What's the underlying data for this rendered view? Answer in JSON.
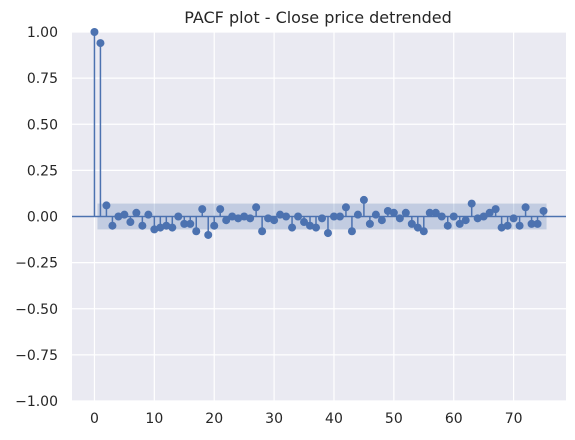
{
  "chart_data": {
    "type": "scatter",
    "subtype": "stem",
    "title": "PACF plot - Close price detrended",
    "xlabel": "",
    "ylabel": "",
    "xlim": [
      -3.75,
      78.75
    ],
    "ylim": [
      -1.0,
      1.0
    ],
    "x_ticks": [
      0,
      10,
      20,
      30,
      40,
      50,
      60,
      70
    ],
    "y_ticks": [
      1.0,
      0.75,
      0.5,
      0.25,
      0.0,
      -0.25,
      -0.5,
      -0.75,
      -1.0
    ],
    "x_tick_labels": [
      "0",
      "10",
      "20",
      "30",
      "40",
      "50",
      "60",
      "70"
    ],
    "y_tick_labels": [
      "1.00",
      "0.75",
      "0.50",
      "0.25",
      "0.00",
      "−0.25",
      "−0.50",
      "−0.75",
      "−1.00"
    ],
    "grid": true,
    "background": "#eaeaf2",
    "marker_color": "#4c72b0",
    "confint_color": "#4c72b0",
    "confidence_interval": {
      "x_start": 1,
      "x_end": 75,
      "lower": -0.07,
      "upper": 0.07
    },
    "lags": [
      0,
      1,
      2,
      3,
      4,
      5,
      6,
      7,
      8,
      9,
      10,
      11,
      12,
      13,
      14,
      15,
      16,
      17,
      18,
      19,
      20,
      21,
      22,
      23,
      24,
      25,
      26,
      27,
      28,
      29,
      30,
      31,
      32,
      33,
      34,
      35,
      36,
      37,
      38,
      39,
      40,
      41,
      42,
      43,
      44,
      45,
      46,
      47,
      48,
      49,
      50,
      51,
      52,
      53,
      54,
      55,
      56,
      57,
      58,
      59,
      60,
      61,
      62,
      63,
      64,
      65,
      66,
      67,
      68,
      69,
      70,
      71,
      72,
      73,
      74,
      75
    ],
    "values": [
      1.0,
      0.94,
      0.06,
      -0.05,
      0.0,
      0.01,
      -0.03,
      0.02,
      -0.05,
      0.01,
      -0.07,
      -0.06,
      -0.05,
      -0.06,
      0.0,
      -0.04,
      -0.04,
      -0.08,
      0.04,
      -0.1,
      -0.05,
      0.04,
      -0.02,
      0.0,
      -0.01,
      0.0,
      -0.01,
      0.05,
      -0.08,
      -0.01,
      -0.02,
      0.01,
      0.0,
      -0.06,
      0.0,
      -0.03,
      -0.05,
      -0.06,
      -0.01,
      -0.09,
      0.0,
      0.0,
      0.05,
      -0.08,
      0.01,
      0.09,
      -0.04,
      0.01,
      -0.02,
      0.03,
      0.02,
      -0.01,
      0.02,
      -0.04,
      -0.06,
      -0.08,
      0.02,
      0.02,
      0.0,
      -0.05,
      0.0,
      -0.04,
      -0.02,
      0.07,
      -0.01,
      0.0,
      0.02,
      0.04,
      -0.06,
      -0.05,
      -0.01,
      -0.05,
      0.05,
      -0.04,
      -0.04,
      0.03
    ]
  }
}
